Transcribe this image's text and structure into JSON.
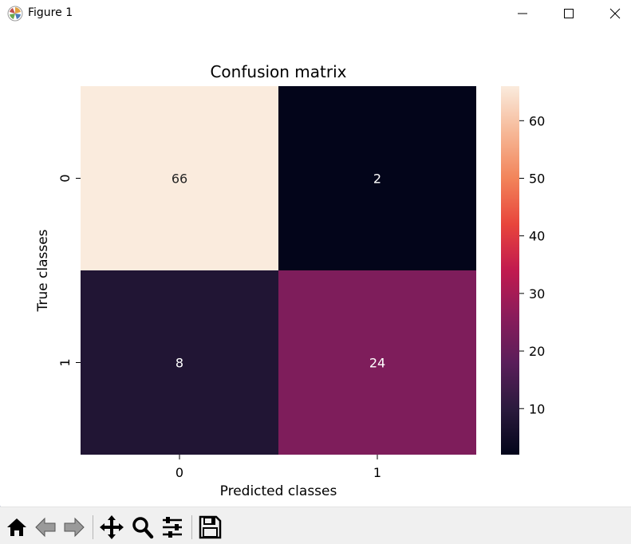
{
  "window": {
    "title": "Figure 1",
    "controls": [
      "minimize-icon",
      "maximize-icon",
      "close-icon"
    ]
  },
  "chart_data": {
    "type": "heatmap",
    "title": "Confusion matrix",
    "xlabel": "Predicted classes",
    "ylabel": "True classes",
    "x_categories": [
      "0",
      "1"
    ],
    "y_categories": [
      "0",
      "1"
    ],
    "values": [
      [
        66,
        2
      ],
      [
        8,
        24
      ]
    ],
    "colorbar": {
      "min": 2,
      "max": 66,
      "ticks": [
        10,
        20,
        30,
        40,
        50,
        60
      ],
      "colormap": "rocket"
    },
    "grid": false
  },
  "toolbar": {
    "buttons": [
      {
        "name": "home-icon"
      },
      {
        "name": "back-icon"
      },
      {
        "name": "forward-icon"
      },
      {
        "name": "pan-icon"
      },
      {
        "name": "zoom-icon"
      },
      {
        "name": "configure-subplots-icon"
      },
      {
        "name": "save-icon"
      }
    ]
  }
}
